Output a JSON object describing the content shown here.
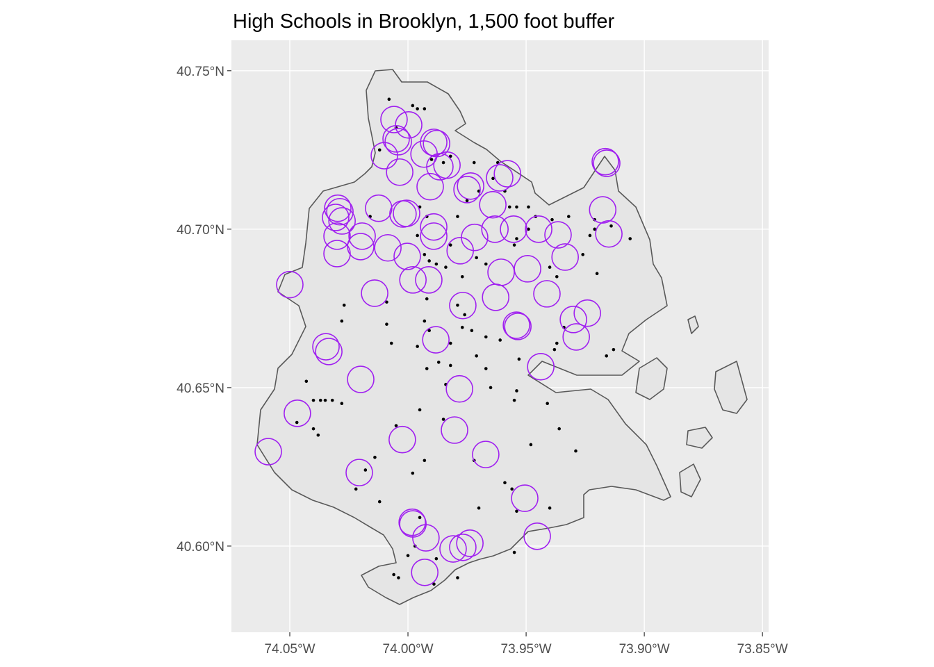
{
  "chart_data": {
    "type": "map",
    "title": "High Schools in Brooklyn, 1,500 foot buffer",
    "xlim": [
      -74.0747,
      -73.8474
    ],
    "ylim": [
      40.5728,
      40.7596
    ],
    "xticks": [
      {
        "value": -74.05,
        "label": "74.05°W"
      },
      {
        "value": -74.0,
        "label": "74.00°W"
      },
      {
        "value": -73.95,
        "label": "73.95°W"
      },
      {
        "value": -73.9,
        "label": "73.90°W"
      },
      {
        "value": -73.85,
        "label": "73.85°W"
      }
    ],
    "yticks": [
      {
        "value": 40.6,
        "label": "40.60°N"
      },
      {
        "value": 40.65,
        "label": "40.65°N"
      },
      {
        "value": 40.7,
        "label": "40.70°N"
      },
      {
        "value": 40.75,
        "label": "40.75°N"
      }
    ],
    "grid": true,
    "buffers": {
      "color": "#a020f0",
      "x": [
        -74.0059,
        -73.9997,
        -74.005,
        -74.0041,
        -73.9891,
        -73.9879,
        -74.01,
        -73.9932,
        -74.0035,
        -73.9865,
        -73.9835,
        -73.9906,
        -73.9735,
        -73.975,
        -73.9612,
        -73.9579,
        -73.9165,
        -73.9159,
        -74.0297,
        -74.0288,
        -74.0306,
        -74.0279,
        -74.0124,
        -74.0021,
        -74.0006,
        -73.9891,
        -73.9891,
        -74.0194,
        -74.02,
        -74.03,
        -74.03,
        -74.0085,
        -74.0003,
        -73.9779,
        -73.9718,
        -73.9641,
        -73.9632,
        -73.9553,
        -73.9447,
        -73.9365,
        -73.9335,
        -73.9176,
        -73.915,
        -74.05,
        -74.0141,
        -73.9979,
        -73.9912,
        -73.9768,
        -73.9606,
        -73.9494,
        -73.9412,
        -73.9629,
        -73.9541,
        -73.9535,
        -73.93,
        -73.9241,
        -73.9288,
        -73.9882,
        -74.0347,
        -74.0335,
        -74.02,
        -73.9782,
        -73.9438,
        -74.0468,
        -74.0024,
        -73.9803,
        -73.9671,
        -74.0591,
        -74.0206,
        -73.9506,
        -73.9982,
        -73.9979,
        -73.9924,
        -73.9809,
        -73.9768,
        -73.9738,
        -73.9453,
        -73.9929
      ],
      "y": [
        40.7346,
        40.7329,
        40.7285,
        40.7276,
        40.7274,
        40.727,
        40.7232,
        40.7237,
        40.718,
        40.7197,
        40.7202,
        40.7134,
        40.7136,
        40.7125,
        40.7162,
        40.7175,
        40.7213,
        40.7208,
        40.7066,
        40.7055,
        40.7037,
        40.7026,
        40.7066,
        40.7048,
        40.705,
        40.7007,
        40.6978,
        40.6978,
        40.6945,
        40.6978,
        40.6923,
        40.6941,
        40.6914,
        40.6932,
        40.6974,
        40.7077,
        40.7,
        40.7,
        40.7,
        40.6982,
        40.6912,
        40.7061,
        40.6985,
        40.6825,
        40.6798,
        40.684,
        40.684,
        40.6759,
        40.6864,
        40.6875,
        40.6796,
        40.6785,
        40.6697,
        40.6693,
        40.6715,
        40.6735,
        40.666,
        40.6651,
        40.6629,
        40.6614,
        40.6526,
        40.6496,
        40.6566,
        40.6419,
        40.6336,
        40.6366,
        40.6289,
        40.6298,
        40.6232,
        40.6151,
        40.6075,
        40.607,
        40.6026,
        40.5991,
        40.5996,
        40.6009,
        40.6031,
        40.5917
      ]
    },
    "schools": {
      "color": "#000000",
      "x": [
        -74.008,
        -73.998,
        -73.996,
        -73.993,
        -74.005,
        -74.012,
        -73.99,
        -73.985,
        -73.972,
        -73.962,
        -73.964,
        -73.97,
        -73.959,
        -73.954,
        -73.949,
        -73.946,
        -73.932,
        -73.921,
        -73.923,
        -73.906,
        -73.926,
        -73.94,
        -73.937,
        -73.92,
        -73.955,
        -73.967,
        -73.971,
        -73.977,
        -73.984,
        -73.993,
        -73.991,
        -73.988,
        -73.982,
        -73.996,
        -74.027,
        -74.028,
        -74.009,
        -74.007,
        -73.993,
        -73.991,
        -73.982,
        -73.977,
        -73.973,
        -73.967,
        -73.961,
        -73.953,
        -73.938,
        -73.934,
        -73.916,
        -73.913,
        -73.937,
        -73.982,
        -73.987,
        -73.992,
        -73.996,
        -73.971,
        -73.967,
        -73.955,
        -73.941,
        -73.948,
        -73.936,
        -73.929,
        -74.043,
        -74.04,
        -74.037,
        -74.035,
        -74.032,
        -74.028,
        -74.047,
        -74.04,
        -74.038,
        -74.005,
        -74.014,
        -73.993,
        -73.998,
        -74.018,
        -74.022,
        -74.012,
        -73.972,
        -73.959,
        -73.956,
        -73.954,
        -73.94,
        -73.97,
        -73.995,
        -73.997,
        -74.0,
        -73.988,
        -74.006,
        -74.004,
        -73.989,
        -73.979,
        -73.955,
        -73.985,
        -73.965,
        -73.954,
        -73.995,
        -73.984,
        -73.976,
        -73.979,
        -74.009,
        -73.992,
        -73.957,
        -73.975,
        -73.979,
        -73.954,
        -73.949,
        -73.914,
        -73.921,
        -73.939,
        -73.982,
        -74.016,
        -73.995,
        -73.992
      ],
      "y": [
        40.741,
        40.739,
        40.738,
        40.738,
        40.732,
        40.725,
        40.722,
        40.721,
        40.721,
        40.721,
        40.716,
        40.712,
        40.712,
        40.707,
        40.707,
        40.704,
        40.704,
        40.7,
        40.698,
        40.697,
        40.692,
        40.688,
        40.685,
        40.686,
        40.695,
        40.689,
        40.691,
        40.685,
        40.688,
        40.692,
        40.69,
        40.689,
        40.695,
        40.698,
        40.676,
        40.671,
        40.67,
        40.664,
        40.671,
        40.668,
        40.664,
        40.669,
        40.668,
        40.666,
        40.665,
        40.659,
        40.662,
        40.669,
        40.66,
        40.662,
        40.664,
        40.657,
        40.658,
        40.656,
        40.663,
        40.66,
        40.656,
        40.646,
        40.645,
        40.632,
        40.637,
        40.63,
        40.652,
        40.646,
        40.646,
        40.646,
        40.646,
        40.645,
        40.639,
        40.637,
        40.635,
        40.638,
        40.628,
        40.627,
        40.623,
        40.624,
        40.618,
        40.614,
        40.627,
        40.62,
        40.618,
        40.611,
        40.612,
        40.612,
        40.609,
        40.6,
        40.597,
        40.596,
        40.591,
        40.59,
        40.588,
        40.59,
        40.598,
        40.64,
        40.65,
        40.649,
        40.643,
        40.651,
        40.673,
        40.676,
        40.677,
        40.678,
        40.707,
        40.709,
        40.704,
        40.697,
        40.7,
        40.701,
        40.703,
        40.703,
        40.723,
        40.704,
        40.707,
        40.704
      ]
    }
  }
}
